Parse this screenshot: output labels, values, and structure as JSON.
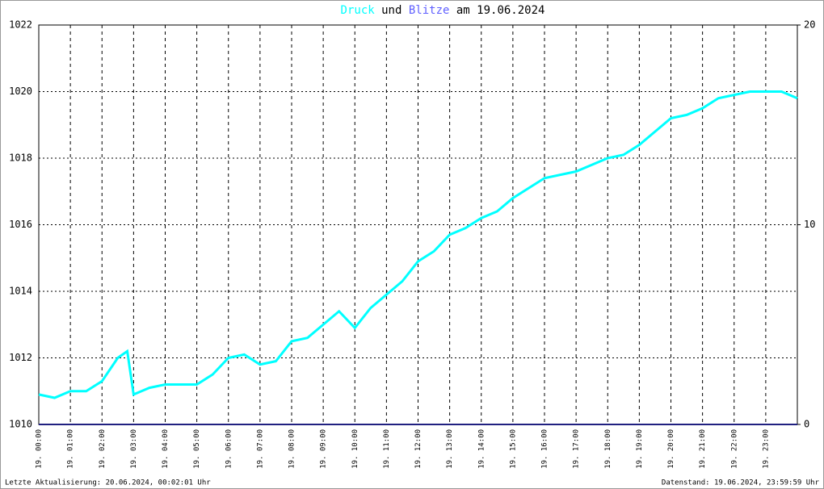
{
  "chart_data": {
    "type": "line",
    "title_connector": "und",
    "title_date": "am 19.06.2024",
    "x": [
      0,
      0.5,
      1,
      1.5,
      2,
      2.5,
      2.8,
      3,
      3.5,
      4,
      4.5,
      5,
      5.5,
      6,
      6.5,
      7,
      7.5,
      8,
      8.5,
      9,
      9.5,
      10,
      10.5,
      11,
      11.5,
      12,
      12.5,
      13,
      13.5,
      14,
      14.5,
      15,
      15.5,
      16,
      16.5,
      17,
      17.5,
      18,
      18.5,
      19,
      19.5,
      20,
      20.5,
      21,
      21.5,
      22,
      22.5,
      23,
      23.5,
      24
    ],
    "series": [
      {
        "name": "Druck",
        "color": "#00ffff",
        "values": [
          1010.9,
          1010.8,
          1011.0,
          1011.0,
          1011.3,
          1012.0,
          1012.2,
          1010.9,
          1011.1,
          1011.2,
          1011.2,
          1011.2,
          1011.5,
          1012.0,
          1012.1,
          1011.8,
          1011.9,
          1012.5,
          1012.6,
          1013.0,
          1013.4,
          1012.9,
          1013.5,
          1013.9,
          1014.3,
          1014.9,
          1015.2,
          1015.7,
          1015.9,
          1016.2,
          1016.4,
          1016.8,
          1017.1,
          1017.4,
          1017.5,
          1017.6,
          1017.8,
          1018.0,
          1018.1,
          1018.4,
          1018.8,
          1019.2,
          1019.3,
          1019.5,
          1019.8,
          1019.9,
          1020.0,
          1020.0,
          1020.0,
          1019.8
        ]
      },
      {
        "name": "Blitze",
        "color": "#202080",
        "axis": "y2",
        "values": [
          0,
          0,
          0,
          0,
          0,
          0,
          0,
          0,
          0,
          0,
          0,
          0,
          0,
          0,
          0,
          0,
          0,
          0,
          0,
          0,
          0,
          0,
          0,
          0,
          0,
          0,
          0,
          0,
          0,
          0,
          0,
          0,
          0,
          0,
          0,
          0,
          0,
          0,
          0,
          0,
          0,
          0,
          0,
          0,
          0,
          0,
          0,
          0,
          0,
          0
        ]
      }
    ],
    "xlim": [
      0,
      24
    ],
    "xticks": [
      {
        "value": 0,
        "label": "19. 00:00"
      },
      {
        "value": 1,
        "label": "19. 01:00"
      },
      {
        "value": 2,
        "label": "19. 02:00"
      },
      {
        "value": 3,
        "label": "19. 03:00"
      },
      {
        "value": 4,
        "label": "19. 04:00"
      },
      {
        "value": 5,
        "label": "19. 05:00"
      },
      {
        "value": 6,
        "label": "19. 06:00"
      },
      {
        "value": 7,
        "label": "19. 07:00"
      },
      {
        "value": 8,
        "label": "19. 08:00"
      },
      {
        "value": 9,
        "label": "19. 09:00"
      },
      {
        "value": 10,
        "label": "19. 10:00"
      },
      {
        "value": 11,
        "label": "19. 11:00"
      },
      {
        "value": 12,
        "label": "19. 12:00"
      },
      {
        "value": 13,
        "label": "19. 13:00"
      },
      {
        "value": 14,
        "label": "19. 14:00"
      },
      {
        "value": 15,
        "label": "19. 15:00"
      },
      {
        "value": 16,
        "label": "19. 16:00"
      },
      {
        "value": 17,
        "label": "19. 17:00"
      },
      {
        "value": 18,
        "label": "19. 18:00"
      },
      {
        "value": 19,
        "label": "19. 19:00"
      },
      {
        "value": 20,
        "label": "19. 20:00"
      },
      {
        "value": 21,
        "label": "19. 21:00"
      },
      {
        "value": 22,
        "label": "19. 22:00"
      },
      {
        "value": 23,
        "label": "19. 23:00"
      }
    ],
    "ylim": [
      1010,
      1022
    ],
    "yticks": [
      1010,
      1012,
      1014,
      1016,
      1018,
      1020,
      1022
    ],
    "y2lim": [
      0,
      20
    ],
    "y2ticks": [
      0,
      10,
      20
    ],
    "grid": true,
    "footer_left": "Letzte Aktualisierung: 20.06.2024, 00:02:01 Uhr",
    "footer_right": "Datenstand: 19.06.2024, 23:59:59 Uhr"
  }
}
